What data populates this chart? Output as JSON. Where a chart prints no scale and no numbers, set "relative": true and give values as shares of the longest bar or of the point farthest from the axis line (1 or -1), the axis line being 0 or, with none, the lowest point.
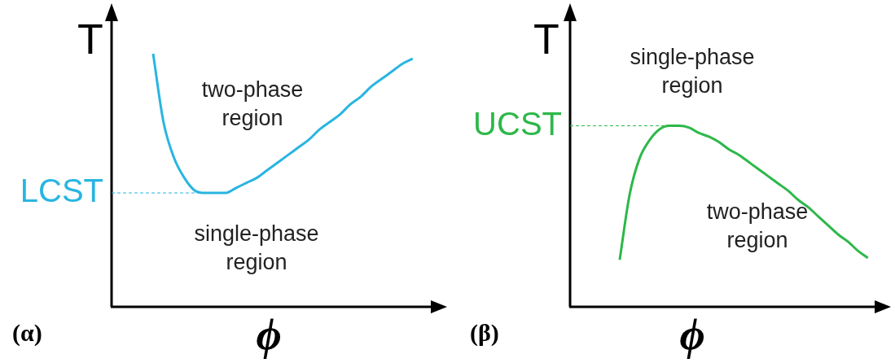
{
  "chart_data": [
    {
      "type": "line",
      "title": "(α)",
      "xlabel": "ϕ",
      "ylabel": "T",
      "relative": true,
      "marker": "none",
      "categories": [
        null,
        null,
        null,
        null,
        null,
        null,
        null,
        null,
        null,
        null,
        null,
        null,
        null,
        null,
        null,
        null,
        null,
        null,
        null,
        null,
        null,
        null,
        null,
        null,
        null,
        null,
        null,
        null,
        null,
        null,
        null,
        null,
        null
      ],
      "series": [
        {
          "color": "#29b5e1",
          "values": [
            null,
            null,
            null,
            null,
            1.0,
            0.73,
            0.59,
            0.51,
            0.46,
            0.45,
            0.45,
            0.45,
            0.47,
            0.49,
            0.51,
            0.54,
            0.57,
            0.6,
            0.63,
            0.66,
            0.7,
            0.73,
            0.76,
            0.8,
            0.83,
            0.87,
            0.9,
            0.93,
            0.96,
            0.98,
            null,
            null,
            null
          ]
        }
      ],
      "ref_lines": [
        {
          "axis": "y",
          "value": 0.45,
          "label": "LCST",
          "color": "#29b5e1",
          "line_style": "dashed"
        }
      ],
      "annotations": [
        "two-phase region",
        "single-phase region"
      ]
    },
    {
      "type": "line",
      "title": "(β)",
      "xlabel": "ϕ",
      "ylabel": "T",
      "relative": true,
      "marker": "none",
      "categories": [
        null,
        null,
        null,
        null,
        null,
        null,
        null,
        null,
        null,
        null,
        null,
        null,
        null,
        null,
        null,
        null,
        null,
        null,
        null,
        null,
        null,
        null,
        null,
        null,
        null,
        null,
        null,
        null,
        null,
        null,
        null,
        null,
        null
      ],
      "series": [
        {
          "color": "#2db84a",
          "values": [
            null,
            null,
            null,
            null,
            null,
            0.26,
            0.62,
            0.82,
            0.92,
            0.98,
            1.0,
            1.0,
            0.99,
            0.96,
            0.94,
            0.91,
            0.87,
            0.84,
            0.8,
            0.76,
            0.72,
            0.68,
            0.64,
            0.59,
            0.55,
            0.5,
            0.45,
            0.4,
            0.36,
            0.31,
            0.27,
            null,
            null
          ]
        }
      ],
      "ref_lines": [
        {
          "axis": "y",
          "value": 1.0,
          "label": "UCST",
          "color": "#2db84a",
          "line_style": "dashed"
        }
      ],
      "annotations": [
        "single-phase region",
        "two-phase region"
      ]
    }
  ]
}
